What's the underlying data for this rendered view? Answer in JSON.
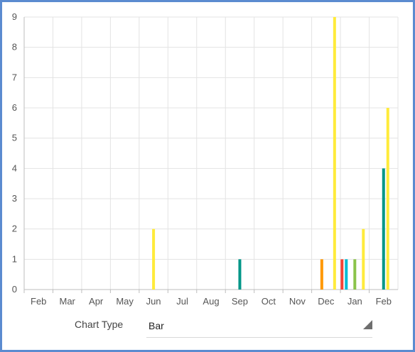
{
  "chart_data": {
    "type": "bar",
    "categories": [
      "Feb",
      "Mar",
      "Apr",
      "May",
      "Jun",
      "Jul",
      "Aug",
      "Sep",
      "Oct",
      "Nov",
      "Dec",
      "Jan",
      "Feb"
    ],
    "ylim": [
      0,
      9
    ],
    "yticks": [
      "0",
      "1",
      "2",
      "3",
      "4",
      "5",
      "6",
      "7",
      "8",
      "9"
    ],
    "grid": true,
    "bars": [
      {
        "category_index": 4,
        "slot": 0,
        "value": 2,
        "color": "#ffeb3b"
      },
      {
        "category_index": 7,
        "slot": 0,
        "value": 1,
        "color": "#009688"
      },
      {
        "category_index": 10,
        "slot": -1,
        "value": 1,
        "color": "#ff9800"
      },
      {
        "category_index": 10,
        "slot": 2,
        "value": 9,
        "color": "#ffeb3b"
      },
      {
        "category_index": 11,
        "slot": -3,
        "value": 1,
        "color": "#f44336"
      },
      {
        "category_index": 11,
        "slot": -2,
        "value": 1,
        "color": "#00bcd4"
      },
      {
        "category_index": 11,
        "slot": 0,
        "value": 1,
        "color": "#8bc34a"
      },
      {
        "category_index": 11,
        "slot": 2,
        "value": 2,
        "color": "#ffeb3b"
      },
      {
        "category_index": 12,
        "slot": 0,
        "value": 4,
        "color": "#009688"
      },
      {
        "category_index": 12,
        "slot": 1,
        "value": 6,
        "color": "#ffeb3b"
      }
    ]
  },
  "controls": {
    "chart_type_label": "Chart Type",
    "chart_type_value": "Bar"
  },
  "colors": {
    "frame_border": "#5b8bd0",
    "grid": "#e3e3e3",
    "axis": "#bdbdbd"
  }
}
